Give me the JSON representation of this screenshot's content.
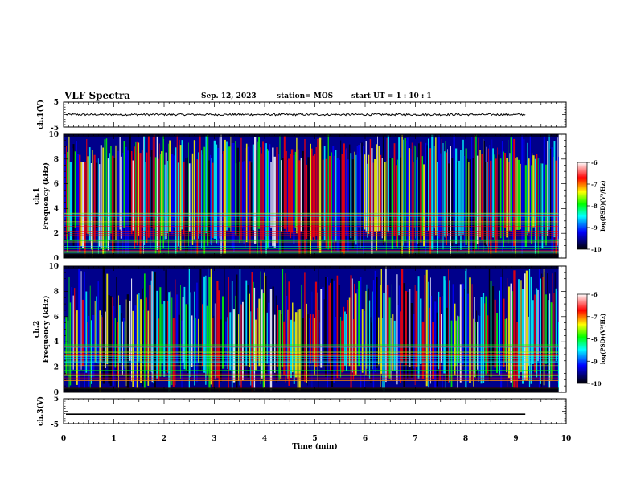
{
  "header": {
    "title": "VLF Spectra",
    "date": "Sep. 12, 2023",
    "station": "station= MOS",
    "start_ut": "start  UT  =   1 : 10 : 1"
  },
  "chart_data": [
    {
      "id": "ch1-voltage",
      "type": "line",
      "ylabel": "ch.1(V)",
      "ylim": [
        -5,
        5
      ],
      "yticks": [
        "5",
        "-5"
      ],
      "xlim": [
        0,
        10
      ],
      "trace_level": 0,
      "trace_noise": 0.4
    },
    {
      "id": "ch1-spectrogram",
      "type": "heatmap",
      "ylabel_lines": [
        "ch.1",
        "Frequency  (kHz)"
      ],
      "ylim": [
        0,
        10
      ],
      "yticks": [
        "0",
        "2",
        "4",
        "6",
        "8",
        "10"
      ],
      "xlim": [
        0,
        10
      ],
      "data_end_min": 9.85,
      "colorbar": {
        "label": "log(PSD)(V²/Hz)",
        "range": [
          -10,
          -6
        ],
        "ticks": [
          "-6",
          "-7",
          "-8",
          "-9",
          "-10"
        ]
      }
    },
    {
      "id": "ch2-spectrogram",
      "type": "heatmap",
      "ylabel_lines": [
        "ch.2",
        "Frequency  (kHz)"
      ],
      "ylim": [
        0,
        10
      ],
      "yticks": [
        "0",
        "2",
        "4",
        "6",
        "8",
        "10"
      ],
      "xlim": [
        0,
        10
      ],
      "data_end_min": 9.85,
      "colorbar": {
        "label": "log(PSD)(V²/Hz)",
        "range": [
          -10,
          -6
        ],
        "ticks": [
          "-6",
          "-7",
          "-8",
          "-9",
          "-10"
        ]
      }
    },
    {
      "id": "ch3-voltage",
      "type": "line",
      "ylabel": "ch.3(V)",
      "ylim": [
        -5,
        5
      ],
      "yticks": [
        "5",
        "-5"
      ],
      "xlim": [
        0,
        10
      ],
      "trace_level": -1.2,
      "trace_noise": 0
    }
  ],
  "xaxis": {
    "label": "Time  (min)",
    "ticks": [
      "0",
      "1",
      "2",
      "3",
      "4",
      "5",
      "6",
      "7",
      "8",
      "9",
      "10"
    ]
  },
  "colors": {
    "colormap": [
      "#000000",
      "#0000ff",
      "#00ffff",
      "#00ff00",
      "#ffff00",
      "#ff0000",
      "#ffffff"
    ],
    "axis": "#000000",
    "trace": "#000000"
  }
}
